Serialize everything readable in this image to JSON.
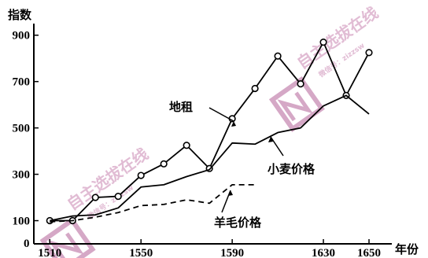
{
  "chart_data": {
    "type": "line",
    "xlabel": "年份",
    "ylabel": "指数",
    "xlim": [
      1503,
      1660
    ],
    "ylim": [
      0,
      950
    ],
    "x_ticks": [
      "1510",
      "1550",
      "1590",
      "1630",
      "1650"
    ],
    "y_ticks": [
      "100",
      "300",
      "500",
      "700",
      "900"
    ],
    "origin_label": "0",
    "series": [
      {
        "name": "地租",
        "style": "solid-circles",
        "x": [
          1510,
          1520,
          1530,
          1540,
          1550,
          1560,
          1570,
          1580,
          1590,
          1600,
          1610,
          1620,
          1630,
          1640,
          1650
        ],
        "y": [
          100,
          100,
          200,
          205,
          295,
          345,
          425,
          325,
          540,
          670,
          810,
          690,
          870,
          640,
          825
        ]
      },
      {
        "name": "小麦价格",
        "style": "solid",
        "x": [
          1510,
          1520,
          1530,
          1540,
          1550,
          1560,
          1570,
          1580,
          1590,
          1600,
          1610,
          1620,
          1630,
          1640,
          1650
        ],
        "y": [
          100,
          120,
          125,
          155,
          245,
          255,
          290,
          320,
          435,
          430,
          480,
          500,
          595,
          640,
          560
        ]
      },
      {
        "name": "羊毛价格",
        "style": "dashed",
        "x": [
          1510,
          1520,
          1530,
          1540,
          1550,
          1560,
          1570,
          1580,
          1590,
          1600
        ],
        "y": [
          95,
          100,
          115,
          135,
          165,
          170,
          190,
          175,
          255,
          255
        ]
      }
    ],
    "annotations": [
      "地租",
      "小麦价格",
      "羊毛价格"
    ]
  },
  "watermark": {
    "text_top": "自主选拔在线",
    "text_bottom": "自主选拔在线",
    "sub_top": "微信号：zizzsw",
    "sub_bottom": "微信号：zizzsw",
    "color": "#c88bb4"
  }
}
